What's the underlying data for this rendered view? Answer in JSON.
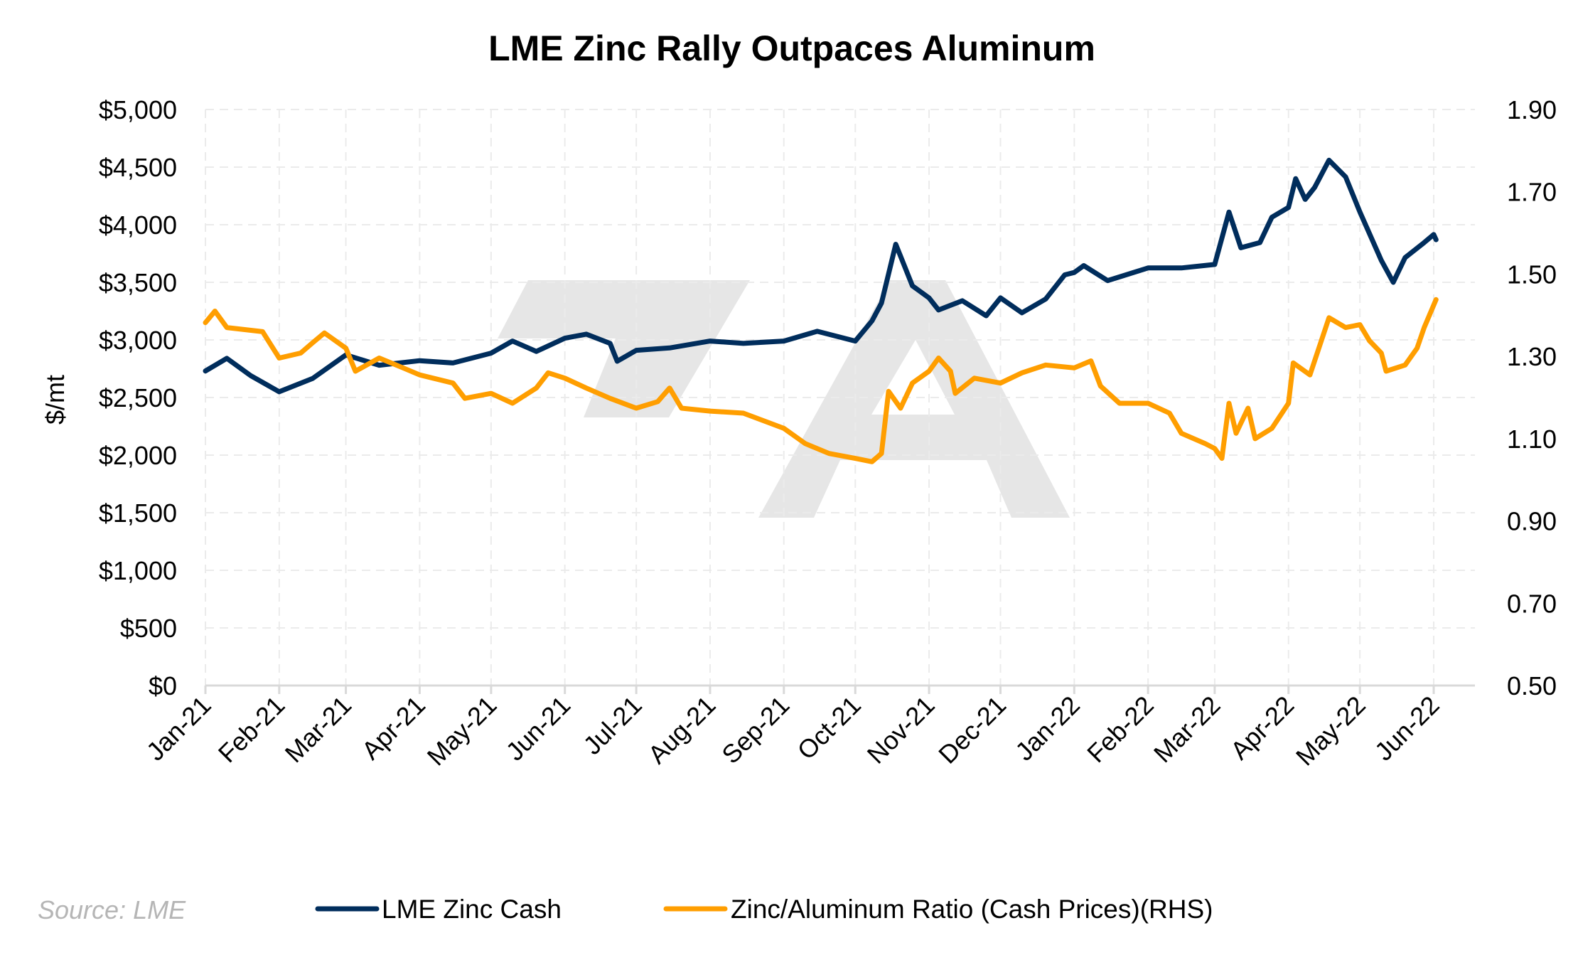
{
  "chart_data": {
    "type": "line",
    "title": "LME Zinc Rally Outpaces Aluminum",
    "ylabel": "$/mt",
    "ylim": [
      0,
      5000
    ],
    "y2lim": [
      0.5,
      1.9
    ],
    "y_ticks": [
      "$0",
      "$500",
      "$1,000",
      "$1,500",
      "$2,000",
      "$2,500",
      "$3,000",
      "$3,500",
      "$4,000",
      "$4,500",
      "$5,000"
    ],
    "y_tick_values": [
      0,
      500,
      1000,
      1500,
      2000,
      2500,
      3000,
      3500,
      4000,
      4500,
      5000
    ],
    "y2_ticks": [
      "0.50",
      "0.70",
      "0.90",
      "1.10",
      "1.30",
      "1.50",
      "1.70",
      "1.90"
    ],
    "y2_tick_values": [
      0.5,
      0.7,
      0.9,
      1.1,
      1.3,
      1.5,
      1.7,
      1.9
    ],
    "x_ticks": [
      "Jan-21",
      "Feb-21",
      "Mar-21",
      "Apr-21",
      "May-21",
      "Jun-21",
      "Jul-21",
      "Aug-21",
      "Sep-21",
      "Oct-21",
      "Nov-21",
      "Dec-21",
      "Jan-22",
      "Feb-22",
      "Mar-22",
      "Apr-22",
      "May-22",
      "Jun-22"
    ],
    "x_tick_dates": [
      "2021-01-01",
      "2021-02-01",
      "2021-03-01",
      "2021-04-01",
      "2021-05-01",
      "2021-06-01",
      "2021-07-01",
      "2021-08-01",
      "2021-09-01",
      "2021-10-01",
      "2021-11-01",
      "2021-12-01",
      "2022-01-01",
      "2022-02-01",
      "2022-03-01",
      "2022-04-01",
      "2022-05-01",
      "2022-06-01"
    ],
    "grid": true,
    "legend_placement": "bottom",
    "source": "Source: LME",
    "series": [
      {
        "name": "LME Zinc Cash",
        "axis": "left",
        "color": "#002d5c",
        "points": [
          [
            "2021-01-01",
            2730
          ],
          [
            "2021-01-10",
            2840
          ],
          [
            "2021-01-20",
            2690
          ],
          [
            "2021-02-01",
            2550
          ],
          [
            "2021-02-15",
            2665
          ],
          [
            "2021-03-01",
            2870
          ],
          [
            "2021-03-15",
            2780
          ],
          [
            "2021-04-01",
            2820
          ],
          [
            "2021-04-15",
            2800
          ],
          [
            "2021-05-01",
            2885
          ],
          [
            "2021-05-10",
            2990
          ],
          [
            "2021-05-20",
            2900
          ],
          [
            "2021-06-01",
            3015
          ],
          [
            "2021-06-10",
            3050
          ],
          [
            "2021-06-20",
            2970
          ],
          [
            "2021-06-23",
            2815
          ],
          [
            "2021-07-01",
            2910
          ],
          [
            "2021-07-15",
            2930
          ],
          [
            "2021-08-01",
            2990
          ],
          [
            "2021-08-15",
            2970
          ],
          [
            "2021-09-01",
            2990
          ],
          [
            "2021-09-15",
            3075
          ],
          [
            "2021-10-01",
            2990
          ],
          [
            "2021-10-08",
            3165
          ],
          [
            "2021-10-12",
            3320
          ],
          [
            "2021-10-18",
            3830
          ],
          [
            "2021-10-25",
            3470
          ],
          [
            "2021-11-01",
            3365
          ],
          [
            "2021-11-05",
            3260
          ],
          [
            "2021-11-15",
            3340
          ],
          [
            "2021-11-25",
            3210
          ],
          [
            "2021-12-01",
            3365
          ],
          [
            "2021-12-10",
            3235
          ],
          [
            "2021-12-20",
            3355
          ],
          [
            "2021-12-28",
            3565
          ],
          [
            "2022-01-01",
            3585
          ],
          [
            "2022-01-05",
            3645
          ],
          [
            "2022-01-15",
            3515
          ],
          [
            "2022-02-01",
            3625
          ],
          [
            "2022-02-15",
            3625
          ],
          [
            "2022-03-01",
            3655
          ],
          [
            "2022-03-07",
            4110
          ],
          [
            "2022-03-12",
            3800
          ],
          [
            "2022-03-20",
            3845
          ],
          [
            "2022-03-25",
            4065
          ],
          [
            "2022-04-01",
            4150
          ],
          [
            "2022-04-04",
            4400
          ],
          [
            "2022-04-08",
            4220
          ],
          [
            "2022-04-12",
            4325
          ],
          [
            "2022-04-18",
            4560
          ],
          [
            "2022-04-25",
            4415
          ],
          [
            "2022-05-01",
            4110
          ],
          [
            "2022-05-10",
            3690
          ],
          [
            "2022-05-15",
            3500
          ],
          [
            "2022-05-20",
            3715
          ],
          [
            "2022-05-28",
            3845
          ],
          [
            "2022-06-01",
            3915
          ],
          [
            "2022-06-02",
            3870
          ]
        ]
      },
      {
        "name": "Zinc/Aluminum Ratio (Cash Prices)(RHS)",
        "axis": "right",
        "color": "#ff9e00",
        "points": [
          [
            "2021-01-01",
            1.382
          ],
          [
            "2021-01-05",
            1.41
          ],
          [
            "2021-01-10",
            1.37
          ],
          [
            "2021-01-25",
            1.36
          ],
          [
            "2021-02-01",
            1.296
          ],
          [
            "2021-02-10",
            1.308
          ],
          [
            "2021-02-15",
            1.333
          ],
          [
            "2021-02-20",
            1.357
          ],
          [
            "2021-03-01",
            1.32
          ],
          [
            "2021-03-05",
            1.264
          ],
          [
            "2021-03-15",
            1.296
          ],
          [
            "2021-03-25",
            1.272
          ],
          [
            "2021-04-01",
            1.255
          ],
          [
            "2021-04-15",
            1.235
          ],
          [
            "2021-04-20",
            1.198
          ],
          [
            "2021-05-01",
            1.21
          ],
          [
            "2021-05-10",
            1.186
          ],
          [
            "2021-05-20",
            1.223
          ],
          [
            "2021-05-25",
            1.26
          ],
          [
            "2021-06-01",
            1.247
          ],
          [
            "2021-06-10",
            1.223
          ],
          [
            "2021-06-20",
            1.198
          ],
          [
            "2021-07-01",
            1.174
          ],
          [
            "2021-07-10",
            1.19
          ],
          [
            "2021-07-15",
            1.223
          ],
          [
            "2021-07-20",
            1.174
          ],
          [
            "2021-08-01",
            1.167
          ],
          [
            "2021-08-15",
            1.162
          ],
          [
            "2021-09-01",
            1.125
          ],
          [
            "2021-09-10",
            1.088
          ],
          [
            "2021-09-20",
            1.064
          ],
          [
            "2021-10-01",
            1.052
          ],
          [
            "2021-10-08",
            1.044
          ],
          [
            "2021-10-12",
            1.064
          ],
          [
            "2021-10-15",
            1.215
          ],
          [
            "2021-10-20",
            1.174
          ],
          [
            "2021-10-25",
            1.235
          ],
          [
            "2021-11-01",
            1.264
          ],
          [
            "2021-11-05",
            1.296
          ],
          [
            "2021-11-10",
            1.264
          ],
          [
            "2021-11-12",
            1.21
          ],
          [
            "2021-11-20",
            1.247
          ],
          [
            "2021-12-01",
            1.235
          ],
          [
            "2021-12-10",
            1.26
          ],
          [
            "2021-12-20",
            1.279
          ],
          [
            "2022-01-01",
            1.272
          ],
          [
            "2022-01-08",
            1.289
          ],
          [
            "2022-01-12",
            1.228
          ],
          [
            "2022-01-20",
            1.186
          ],
          [
            "2022-02-01",
            1.186
          ],
          [
            "2022-02-10",
            1.162
          ],
          [
            "2022-02-15",
            1.113
          ],
          [
            "2022-02-25",
            1.088
          ],
          [
            "2022-03-01",
            1.076
          ],
          [
            "2022-03-04",
            1.052
          ],
          [
            "2022-03-07",
            1.186
          ],
          [
            "2022-03-10",
            1.113
          ],
          [
            "2022-03-15",
            1.174
          ],
          [
            "2022-03-18",
            1.1
          ],
          [
            "2022-03-25",
            1.125
          ],
          [
            "2022-04-01",
            1.186
          ],
          [
            "2022-04-03",
            1.284
          ],
          [
            "2022-04-10",
            1.255
          ],
          [
            "2022-04-18",
            1.394
          ],
          [
            "2022-04-25",
            1.37
          ],
          [
            "2022-05-01",
            1.377
          ],
          [
            "2022-05-05",
            1.338
          ],
          [
            "2022-05-10",
            1.308
          ],
          [
            "2022-05-12",
            1.264
          ],
          [
            "2022-05-20",
            1.279
          ],
          [
            "2022-05-25",
            1.32
          ],
          [
            "2022-05-28",
            1.37
          ],
          [
            "2022-06-02",
            1.438
          ]
        ]
      }
    ]
  }
}
